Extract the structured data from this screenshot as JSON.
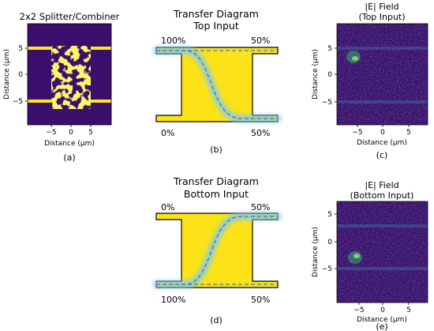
{
  "panels": {
    "a": {
      "title": "2x2 Splitter/Combiner",
      "xlabel": "Distance (μm)",
      "ylabel": "Distance (μm)",
      "xticks": [
        "−5",
        "0",
        "5"
      ],
      "yticks": [
        "5",
        "0",
        "−5"
      ],
      "caption": "(a)"
    },
    "b": {
      "title_line1": "Transfer Diagram",
      "title_line2": "Top Input",
      "label_top_left": "100%",
      "label_top_right": "50%",
      "label_bottom_left": "0%",
      "label_bottom_right": "50%",
      "caption": "(b)"
    },
    "c": {
      "title_line1": "|E| Field",
      "title_line2": "(Top Input)",
      "xlabel": "Distance (μm)",
      "ylabel": "Distance (μm)",
      "xticks": [
        "−5",
        "0",
        "5"
      ],
      "yticks": [
        "5",
        "0",
        "−5"
      ],
      "caption": "(c)"
    },
    "d": {
      "title_line1": "Transfer Diagram",
      "title_line2": "Bottom Input",
      "label_top_left": "0%",
      "label_top_right": "50%",
      "label_bottom_left": "100%",
      "label_bottom_right": "50%",
      "caption": "(d)"
    },
    "e": {
      "title_line1": "|E| Field",
      "title_line2": "(Bottom Input)",
      "xlabel": "Distance (μm)",
      "ylabel": "Distance (μm)",
      "xticks": [
        "−5",
        "0",
        "5"
      ],
      "yticks": [
        "5",
        "0",
        "−5"
      ],
      "caption": "(e)"
    }
  },
  "colors": {
    "background": "#3b0f6b",
    "waveguide": "#fde725",
    "device_yellow": "#fbe317",
    "glow": "#7ec8f5",
    "dashed": "#3a7bbf",
    "field_bright": "#35b779"
  }
}
